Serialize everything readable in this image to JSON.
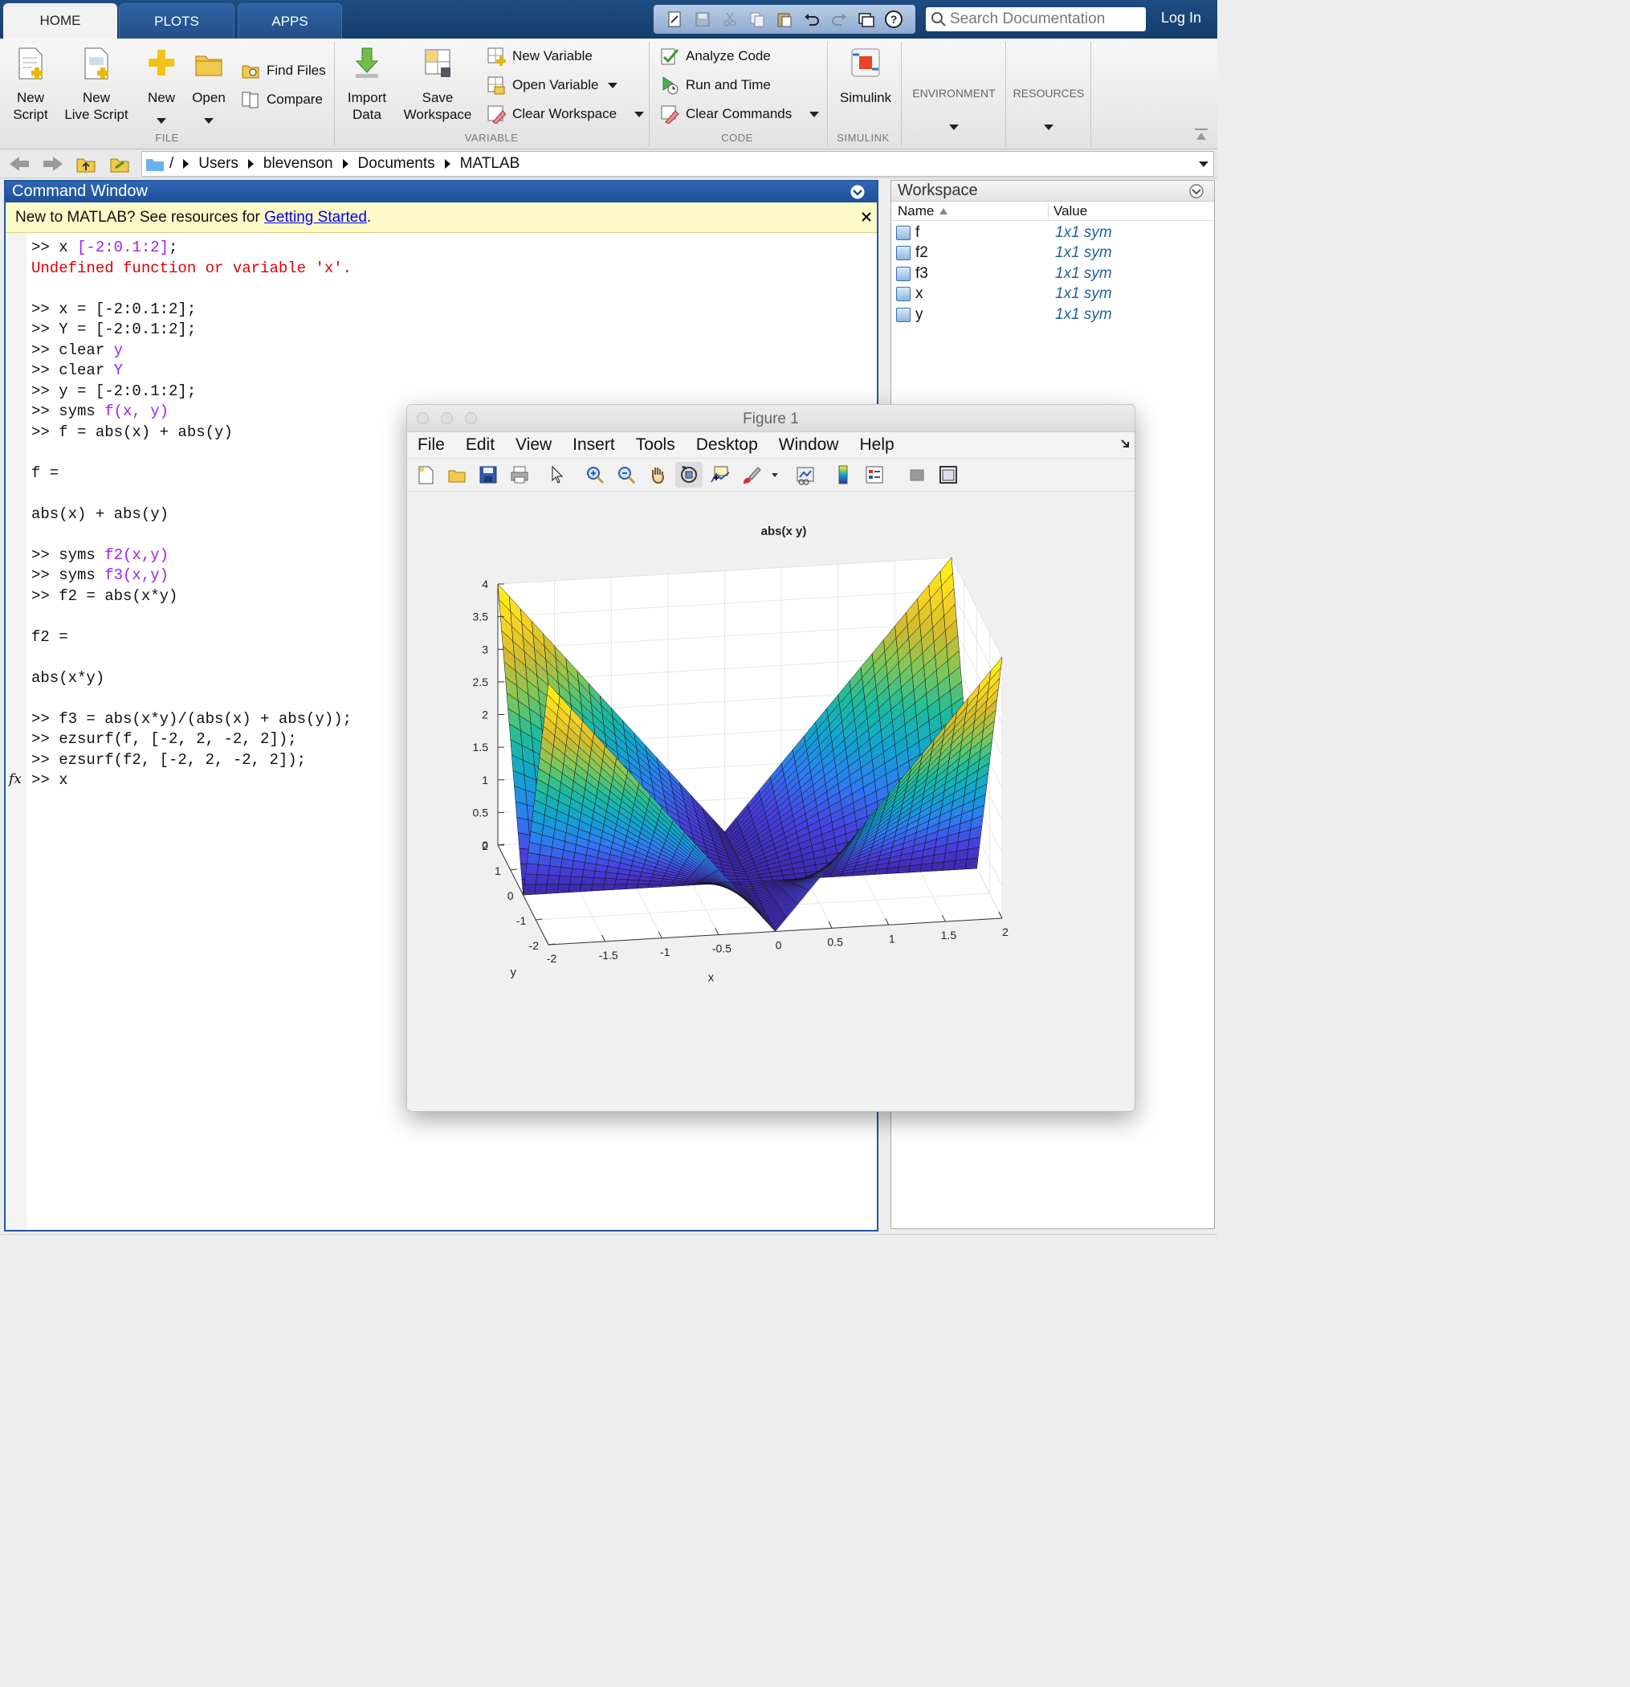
{
  "tabs": [
    {
      "label": "HOME"
    },
    {
      "label": "PLOTS"
    },
    {
      "label": "APPS"
    }
  ],
  "search": {
    "placeholder": "Search Documentation"
  },
  "login_label": "Log In",
  "ribbon": {
    "file": {
      "new_script": [
        "New",
        "Script"
      ],
      "new_live_script": [
        "New",
        "Live Script"
      ],
      "new": "New",
      "open": "Open",
      "find_files": "Find Files",
      "compare": "Compare",
      "section": "FILE"
    },
    "variable": {
      "import_data": [
        "Import",
        "Data"
      ],
      "save_workspace": [
        "Save",
        "Workspace"
      ],
      "new_variable": "New Variable",
      "open_variable": "Open Variable",
      "clear_workspace": "Clear Workspace",
      "section": "VARIABLE"
    },
    "code": {
      "analyze_code": "Analyze Code",
      "run_and_time": "Run and Time",
      "clear_commands": "Clear Commands",
      "section": "CODE"
    },
    "simulink": {
      "label": "Simulink",
      "section": "SIMULINK"
    },
    "environment": "ENVIRONMENT",
    "resources": "RESOURCES"
  },
  "path": [
    "/",
    "Users",
    "blevenson",
    "Documents",
    "MATLAB"
  ],
  "command_window": {
    "title": "Command Window",
    "notice_text": "New to MATLAB? See resources for ",
    "notice_link": "Getting Started",
    "notice_end": ".",
    "lines": [
      {
        "segments": [
          {
            "t": ">> x ",
            "c": ""
          },
          {
            "t": "[-2:0.1:2]",
            "c": "str"
          },
          {
            "t": ";",
            "c": ""
          }
        ]
      },
      {
        "segments": [
          {
            "t": "Undefined function or variable 'x'.",
            "c": "err"
          }
        ]
      },
      {
        "segments": []
      },
      {
        "segments": [
          {
            "t": ">> x = [-2:0.1:2];",
            "c": ""
          }
        ]
      },
      {
        "segments": [
          {
            "t": ">> Y = [-2:0.1:2];",
            "c": ""
          }
        ]
      },
      {
        "segments": [
          {
            "t": ">> clear ",
            "c": ""
          },
          {
            "t": "y",
            "c": "str"
          }
        ]
      },
      {
        "segments": [
          {
            "t": ">> clear ",
            "c": ""
          },
          {
            "t": "Y",
            "c": "str"
          }
        ]
      },
      {
        "segments": [
          {
            "t": ">> y = [-2:0.1:2];",
            "c": ""
          }
        ]
      },
      {
        "segments": [
          {
            "t": ">> syms ",
            "c": ""
          },
          {
            "t": "f(x, y)",
            "c": "str"
          }
        ]
      },
      {
        "segments": [
          {
            "t": ">> f = abs(x) + abs(y)",
            "c": ""
          }
        ]
      },
      {
        "segments": []
      },
      {
        "segments": [
          {
            "t": "f =",
            "c": ""
          }
        ]
      },
      {
        "segments": []
      },
      {
        "segments": [
          {
            "t": "abs(x) + abs(y)",
            "c": ""
          }
        ]
      },
      {
        "segments": []
      },
      {
        "segments": [
          {
            "t": ">> syms ",
            "c": ""
          },
          {
            "t": "f2(x,y)",
            "c": "str"
          }
        ]
      },
      {
        "segments": [
          {
            "t": ">> syms ",
            "c": ""
          },
          {
            "t": "f3(x,y)",
            "c": "str"
          }
        ]
      },
      {
        "segments": [
          {
            "t": ">> f2 = abs(x*y)",
            "c": ""
          }
        ]
      },
      {
        "segments": []
      },
      {
        "segments": [
          {
            "t": "f2 =",
            "c": ""
          }
        ]
      },
      {
        "segments": []
      },
      {
        "segments": [
          {
            "t": "abs(x*y)",
            "c": ""
          }
        ]
      },
      {
        "segments": []
      },
      {
        "segments": [
          {
            "t": ">> f3 = abs(x*y)/(abs(x) + abs(y));",
            "c": ""
          }
        ]
      },
      {
        "segments": [
          {
            "t": ">> ezsurf(f, [-2, 2, -2, 2]);",
            "c": ""
          }
        ]
      },
      {
        "segments": [
          {
            "t": ">> ezsurf(f2, [-2, 2, -2, 2]);",
            "c": ""
          }
        ]
      },
      {
        "segments": [
          {
            "t": ">> x",
            "c": ""
          }
        ]
      }
    ],
    "prompt_icon": "fx"
  },
  "workspace": {
    "title": "Workspace",
    "col_name": "Name",
    "col_value": "Value",
    "rows": [
      {
        "name": "f",
        "value": "1x1 sym"
      },
      {
        "name": "f2",
        "value": "1x1 sym"
      },
      {
        "name": "f3",
        "value": "1x1 sym"
      },
      {
        "name": "x",
        "value": "1x1 sym"
      },
      {
        "name": "y",
        "value": "1x1 sym"
      }
    ]
  },
  "figure": {
    "title": "Figure 1",
    "menu": [
      "File",
      "Edit",
      "View",
      "Insert",
      "Tools",
      "Desktop",
      "Window",
      "Help"
    ],
    "toolbar_icons": [
      "new-figure-icon",
      "open-file-icon",
      "save-icon",
      "print-icon",
      "pointer-icon",
      "zoom-in-icon",
      "zoom-out-icon",
      "pan-icon",
      "rotate-3d-icon",
      "data-cursor-icon",
      "brush-icon",
      "link-plot-icon",
      "colorbar-icon",
      "legend-icon",
      "hide-plot-tools-icon",
      "show-plot-tools-icon"
    ]
  },
  "chart_data": {
    "type": "surface",
    "title": "abs(x y)",
    "function": "abs(x*y)",
    "xlabel": "x",
    "ylabel": "y",
    "zlabel": "",
    "xlim": [
      -2,
      2
    ],
    "ylim": [
      -2,
      2
    ],
    "zlim": [
      0,
      4
    ],
    "x_ticks": [
      "-2",
      "-1.5",
      "-1",
      "-0.5",
      "0",
      "0.5",
      "1",
      "1.5",
      "2"
    ],
    "y_ticks": [
      "-2",
      "-1",
      "0",
      "1",
      "2"
    ],
    "z_ticks": [
      "0",
      "0.5",
      "1",
      "1.5",
      "2",
      "2.5",
      "3",
      "3.5",
      "4"
    ],
    "grid": true,
    "colormap": "parula",
    "colormap_colors": [
      "#3e26a8",
      "#4741e0",
      "#2e7cf2",
      "#12a4cf",
      "#1ebb9b",
      "#7bc75a",
      "#d1bb2f",
      "#fbd624",
      "#f9fb0e"
    ],
    "mesh_points": 41
  }
}
